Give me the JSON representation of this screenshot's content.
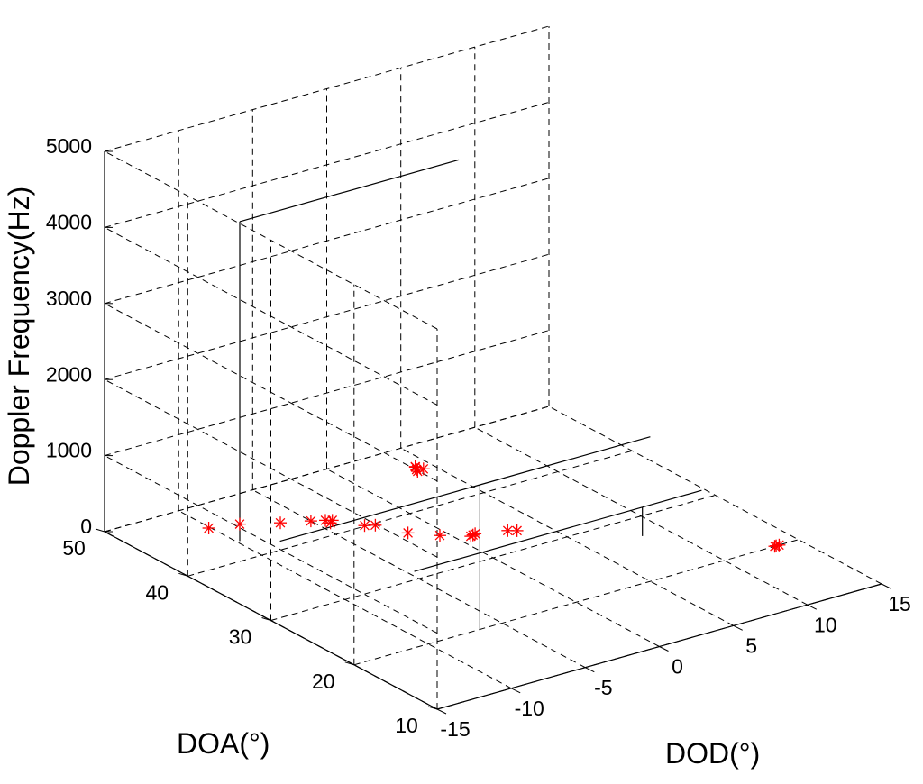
{
  "chart_data": {
    "type": "scatter",
    "projection": "3d",
    "grid": true,
    "xlabel": "DOD(°)",
    "ylabel": "DOA(°)",
    "zlabel": "Doppler Frequency(Hz)",
    "xlim": [
      -15,
      15
    ],
    "ylim": [
      10,
      50
    ],
    "zlim": [
      0,
      5000
    ],
    "xticks": [
      "-15",
      "-10",
      "-5",
      "0",
      "5",
      "10",
      "15"
    ],
    "yticks": [
      "10",
      "20",
      "30",
      "40",
      "50"
    ],
    "zticks": [
      "0",
      "1000",
      "2000",
      "3000",
      "4000",
      "5000"
    ],
    "true_paths_color": "#000000",
    "marker_color": "#ff0000",
    "marker": "*",
    "true_paths": [
      {
        "x": [
          -9.8,
          -9.8,
          -9.8
        ],
        "y": [
          43,
          43,
          43
        ],
        "z": [
          0,
          4200,
          4200
        ]
      },
      {
        "x": [
          -9.8,
          5
        ],
        "y": [
          43,
          43
        ],
        "z": [
          4200,
          4200
        ]
      },
      {
        "x": [
          -6.5,
          -6.5,
          -6.5
        ],
        "y": [
          20,
          20,
          20
        ],
        "z": [
          0,
          1900,
          1900
        ]
      },
      {
        "x": [
          -6.5,
          5
        ],
        "y": [
          20,
          20
        ],
        "z": [
          1900,
          1900
        ]
      },
      {
        "x": [
          -6.5,
          -20
        ],
        "y": [
          20,
          20
        ],
        "z": [
          1900,
          1900
        ]
      },
      {
        "x": [
          8.4,
          8.4,
          8.4
        ],
        "y": [
          27,
          27,
          27
        ],
        "z": [
          0,
          380,
          380
        ]
      },
      {
        "x": [
          8.4,
          12.4
        ],
        "y": [
          27,
          27
        ],
        "z": [
          380,
          380
        ]
      },
      {
        "x": [
          8.4,
          -7
        ],
        "y": [
          27,
          27
        ],
        "z": [
          380,
          380
        ]
      }
    ],
    "estimates": {
      "x": [
        -10.1,
        -8.4,
        -6.5,
        -5.0,
        -4.3,
        -4.3,
        -4.0,
        -3.0,
        -2.5,
        -1.7,
        -0.5,
        0.8,
        1.0,
        1.2,
        2.9,
        3.3,
        13.4,
        13.7,
        13.5
      ],
      "y": [
        46.2,
        45.5,
        44.0,
        43.0,
        42.5,
        41.9,
        42.2,
        40.1,
        39.7,
        37.2,
        35.5,
        34.1,
        34.2,
        34.3,
        33.4,
        33.0,
        20.0,
        20.0,
        20.0
      ],
      "z": [
        0,
        0,
        0,
        0,
        0,
        0,
        0,
        0,
        0,
        0,
        0,
        0,
        0,
        0,
        0,
        0,
        0,
        0,
        0
      ]
    },
    "estimates_high": {
      "x": [
        -2.85,
        -2.75,
        -2.6,
        -2.5,
        -2.45
      ],
      "y": [
        34.0,
        34.3,
        34.7,
        34.9,
        34.0
      ],
      "z": [
        1060,
        1060,
        1060,
        1050,
        1070
      ]
    }
  }
}
